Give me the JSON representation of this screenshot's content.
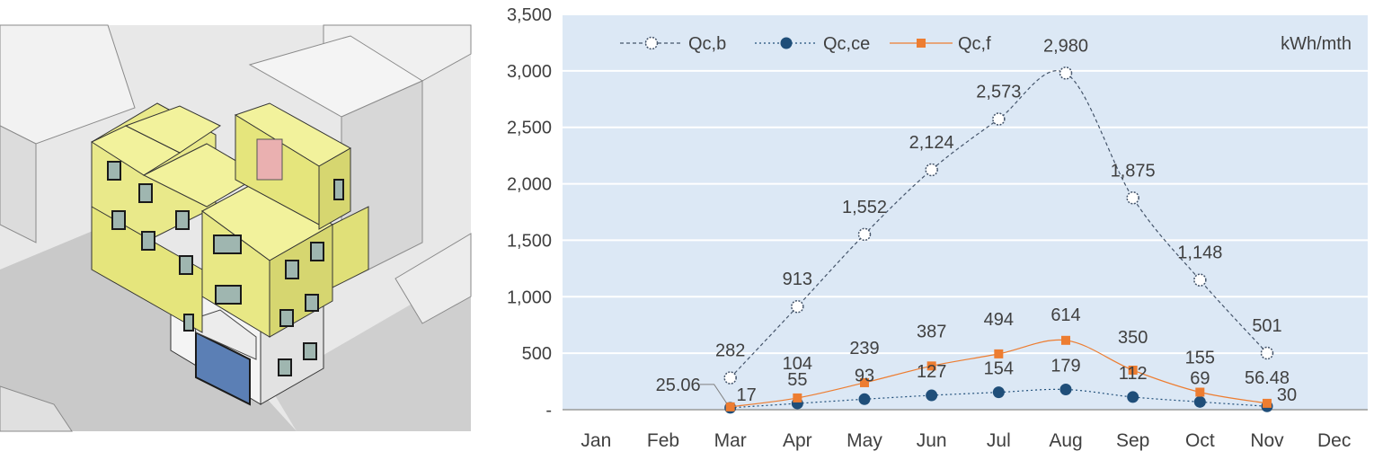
{
  "image": {
    "description_icon": "building-massing-render"
  },
  "chart_data": {
    "type": "line",
    "title": "",
    "unit_label": "kWh/mth",
    "xlabel": "",
    "ylabel": "",
    "categories": [
      "Jan",
      "Feb",
      "Mar",
      "Apr",
      "May",
      "Jun",
      "Jul",
      "Aug",
      "Sep",
      "Oct",
      "Nov",
      "Dec"
    ],
    "ylim": [
      0,
      3500
    ],
    "y_ticks": [
      0,
      500,
      1000,
      1500,
      2000,
      2500,
      3000,
      3500
    ],
    "y_tick_labels": [
      "-",
      "500",
      "1,000",
      "1,500",
      "2,000",
      "2,500",
      "3,000",
      "3,500"
    ],
    "grid": true,
    "legend_position": "top-left",
    "plot_background": "#dce8f5",
    "series": [
      {
        "name": "Qc,b",
        "color": "#44546a",
        "marker": "open-circle",
        "line_style": "dashed",
        "values": [
          null,
          null,
          282,
          913,
          1552,
          2124,
          2573,
          2980,
          1875,
          1148,
          501,
          null
        ],
        "labels": [
          "",
          "",
          "282",
          "913",
          "1,552",
          "2,124",
          "2,573",
          "2,980",
          "1,875",
          "1,148",
          "501",
          ""
        ]
      },
      {
        "name": "Qc,ce",
        "color": "#1f4e79",
        "marker": "filled-circle",
        "line_style": "dotted",
        "values": [
          null,
          null,
          17,
          55,
          93,
          127,
          154,
          179,
          112,
          69,
          30,
          null
        ],
        "labels": [
          "",
          "",
          "17",
          "55",
          "93",
          "127",
          "154",
          "179",
          "112",
          "69",
          "30",
          ""
        ]
      },
      {
        "name": "Qc,f",
        "color": "#ed7d31",
        "marker": "square",
        "line_style": "solid",
        "values": [
          null,
          null,
          25.06,
          104,
          239,
          387,
          494,
          614,
          350,
          155,
          56.48,
          null
        ],
        "labels": [
          "",
          "",
          "25.06",
          "104",
          "239",
          "387",
          "494",
          "614",
          "350",
          "155",
          "56.48",
          ""
        ]
      }
    ]
  }
}
